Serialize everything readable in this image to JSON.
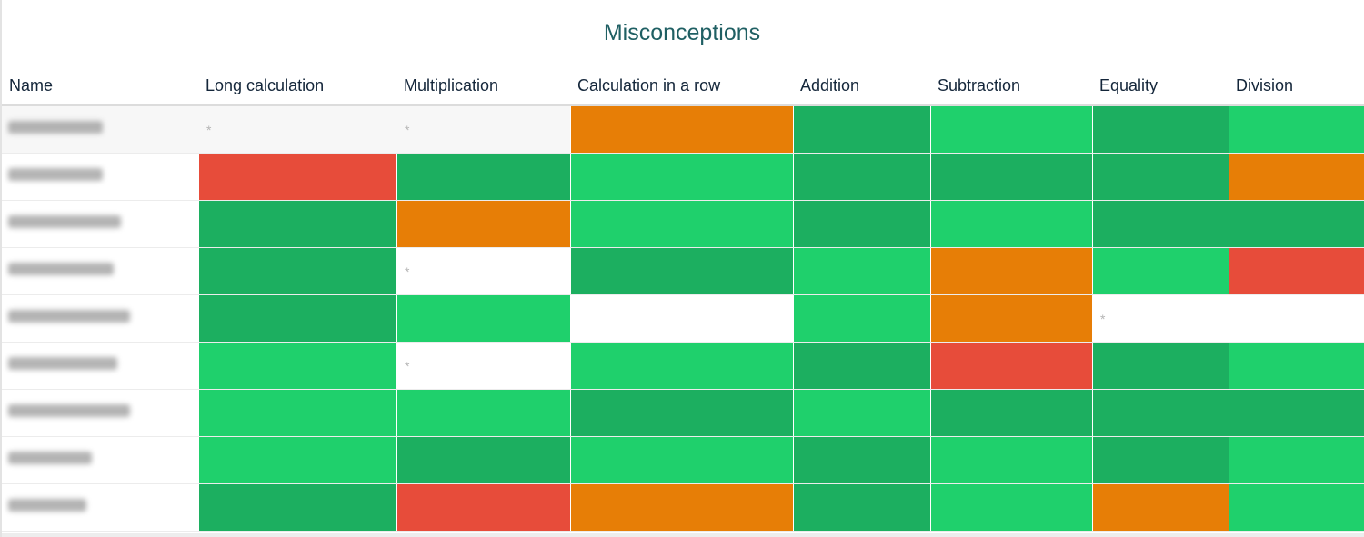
{
  "title": "Misconceptions",
  "columns": [
    "Name",
    "Long calculation",
    "Multiplication",
    "Calculation in a row",
    "Addition",
    "Subtraction",
    "Equality",
    "Division"
  ],
  "palette": {
    "dark": "#1caf60",
    "light": "#1fd06c",
    "orange": "#e77e06",
    "red": "#e74c3a",
    "empty": "#ffffff"
  },
  "rows": [
    {
      "name": "",
      "cells": [
        "empty*",
        "empty*",
        "orange",
        "dark",
        "light",
        "dark",
        "light"
      ]
    },
    {
      "name": "",
      "cells": [
        "red",
        "dark",
        "light",
        "dark",
        "dark",
        "dark",
        "orange"
      ]
    },
    {
      "name": "",
      "cells": [
        "dark",
        "orange",
        "light",
        "dark",
        "light",
        "dark",
        "dark"
      ]
    },
    {
      "name": "",
      "cells": [
        "dark",
        "empty*",
        "dark",
        "light",
        "orange",
        "light",
        "red"
      ]
    },
    {
      "name": "",
      "cells": [
        "dark",
        "light",
        "empty",
        "light",
        "orange",
        "empty*",
        "empty"
      ]
    },
    {
      "name": "",
      "cells": [
        "light",
        "empty*",
        "light",
        "dark",
        "red",
        "dark",
        "light"
      ]
    },
    {
      "name": "",
      "cells": [
        "light",
        "light",
        "dark",
        "light",
        "dark",
        "dark",
        "dark"
      ]
    },
    {
      "name": "",
      "cells": [
        "light",
        "dark",
        "light",
        "dark",
        "light",
        "dark",
        "light"
      ]
    },
    {
      "name": "",
      "cells": [
        "dark",
        "red",
        "orange",
        "dark",
        "light",
        "orange",
        "light"
      ]
    }
  ],
  "empty_marker": "*"
}
